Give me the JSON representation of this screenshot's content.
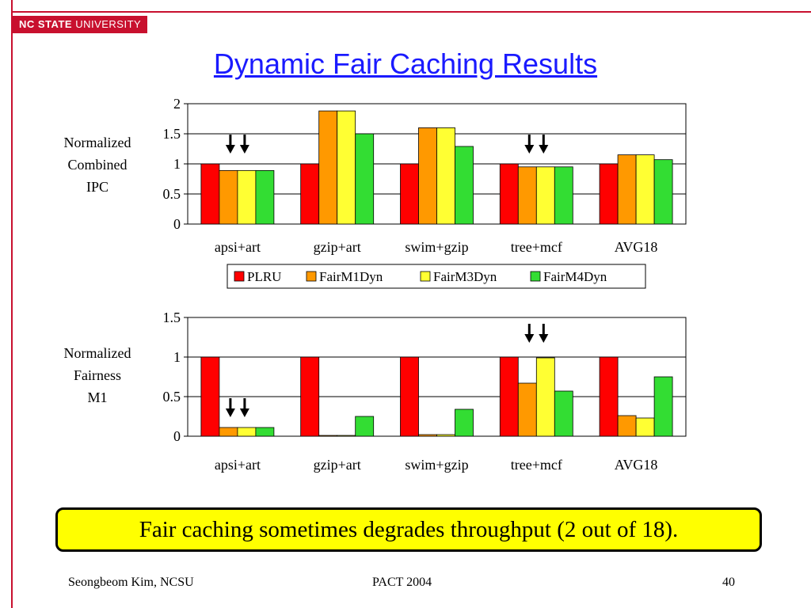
{
  "logo": {
    "strong": "NC STATE",
    "rest": " UNIVERSITY"
  },
  "slide": {
    "title": "Dynamic Fair Caching Results"
  },
  "callout": {
    "text": "Fair caching sometimes degrades throughput (2 out of 18)."
  },
  "footer": {
    "author": "Seongbeom Kim, NCSU",
    "venue": "PACT 2004",
    "page": "40"
  },
  "colors": {
    "frame": "#c8102e",
    "title": "#1a1aff",
    "callout_bg": "#ffff00"
  },
  "chart_data": [
    {
      "type": "bar",
      "ylabel": "Normalized\nCombined\nIPC",
      "categories": [
        "apsi+art",
        "gzip+art",
        "swim+gzip",
        "tree+mcf",
        "AVG18"
      ],
      "ylim": [
        0,
        2
      ],
      "yticks": [
        "0",
        "0.5",
        "1",
        "1.5",
        "2"
      ],
      "grid": true,
      "legend": "bottom",
      "series": [
        {
          "name": "PLRU",
          "color": "#ff0000",
          "values": [
            1.0,
            1.0,
            1.0,
            1.0,
            1.0
          ]
        },
        {
          "name": "FairM1Dyn",
          "color": "#ff9900",
          "values": [
            0.89,
            1.88,
            1.6,
            0.95,
            1.15
          ]
        },
        {
          "name": "FairM3Dyn",
          "color": "#ffff33",
          "values": [
            0.89,
            1.88,
            1.6,
            0.95,
            1.15
          ]
        },
        {
          "name": "FairM4Dyn",
          "color": "#33dd33",
          "values": [
            0.89,
            1.5,
            1.29,
            0.95,
            1.07
          ]
        }
      ],
      "annotations": {
        "arrows_above": [
          "apsi+art",
          "tree+mcf"
        ]
      }
    },
    {
      "type": "bar",
      "ylabel": "Normalized\nFairness\nM1",
      "categories": [
        "apsi+art",
        "gzip+art",
        "swim+gzip",
        "tree+mcf",
        "AVG18"
      ],
      "ylim": [
        0,
        1.5
      ],
      "yticks": [
        "0",
        "0.5",
        "1",
        "1.5"
      ],
      "grid": true,
      "legend": "",
      "series": [
        {
          "name": "PLRU",
          "color": "#ff0000",
          "values": [
            1.0,
            1.0,
            1.0,
            1.0,
            1.0
          ]
        },
        {
          "name": "FairM1Dyn",
          "color": "#ff9900",
          "values": [
            0.11,
            0.01,
            0.02,
            0.67,
            0.26
          ]
        },
        {
          "name": "FairM3Dyn",
          "color": "#ffff33",
          "values": [
            0.11,
            0.01,
            0.02,
            0.99,
            0.23
          ]
        },
        {
          "name": "FairM4Dyn",
          "color": "#33dd33",
          "values": [
            0.11,
            0.25,
            0.34,
            0.57,
            0.75
          ]
        }
      ],
      "annotations": {
        "arrows_above": [
          "apsi+art",
          "tree+mcf"
        ]
      }
    }
  ]
}
